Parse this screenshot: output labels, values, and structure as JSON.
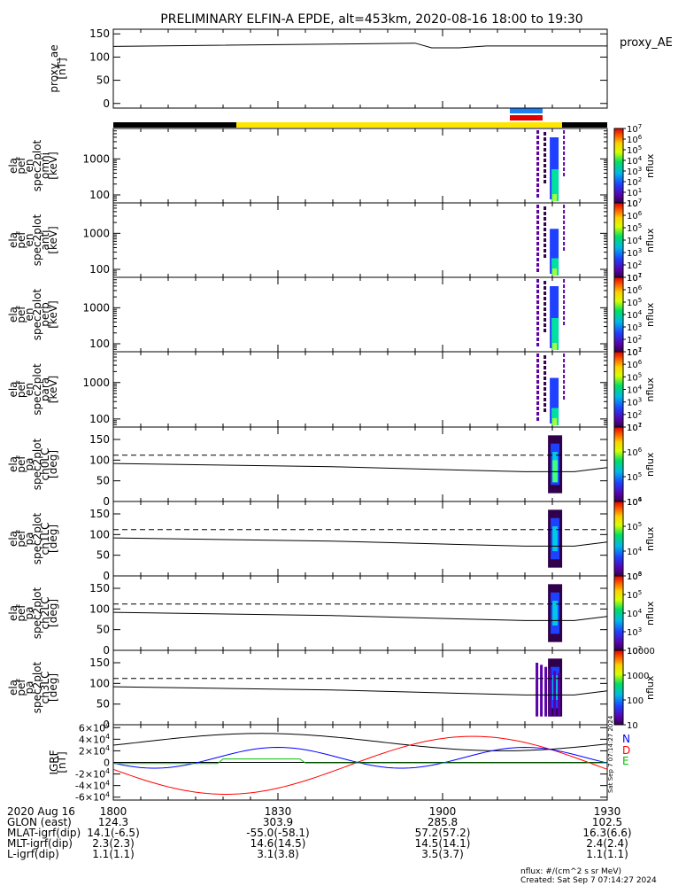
{
  "title": "PRELIMINARY ELFIN-A EPDE, alt=453km, 2020-08-16 18:00 to 19:30",
  "side_label": "proxy_AE",
  "colorbar_unit": "nflux",
  "legend": {
    "n": "N",
    "d": "D",
    "e": "E"
  },
  "footer": {
    "note": "nflux: #/(cm^2 s sr MeV)",
    "created": "Created: Sat Sep  7 07:14:27 2024",
    "stamp": "Sat Sep  7 07:14:27 2024"
  },
  "ephemeris": {
    "rows": [
      {
        "label": "2020 Aug 16",
        "values": [
          "1800",
          "1830",
          "1900",
          "1930"
        ]
      },
      {
        "label": "GLON (east)",
        "values": [
          "124.3",
          "303.9",
          "285.8",
          "102.5"
        ]
      },
      {
        "label": "MLAT-igrf(dip)",
        "values": [
          "14.1(-6.5)",
          "-55.0(-58.1)",
          "57.2(57.2)",
          "16.3(6.6)"
        ]
      },
      {
        "label": "MLT-igrf(dip)",
        "values": [
          "2.3(2.3)",
          "14.6(14.5)",
          "14.5(14.1)",
          "2.4(2.4)"
        ]
      },
      {
        "label": "L-igrf(dip)",
        "values": [
          "1.1(1.1)",
          "3.1(3.8)",
          "3.5(3.7)",
          "1.1(1.1)"
        ]
      }
    ]
  },
  "chart_data": [
    {
      "type": "line",
      "id": "proxy_ae",
      "ylabel": [
        "proxy_ae",
        "[nT]"
      ],
      "ylim": [
        -10,
        160
      ],
      "yticks": [
        0,
        50,
        100,
        150
      ],
      "x_minutes": [
        0,
        58,
        63,
        68,
        90
      ],
      "series": [
        {
          "x": [
            0,
            40,
            55,
            58,
            63,
            68,
            90
          ],
          "y": [
            123,
            128,
            130,
            120,
            120,
            124,
            124
          ]
        }
      ]
    },
    {
      "type": "heatmap",
      "id": "omni",
      "ylabel": [
        "ela",
        "pef",
        "en",
        "spec2plot",
        "omni",
        "[keV]"
      ],
      "ylog": true,
      "ylim": [
        60,
        7000
      ],
      "yticks": [
        100,
        1000
      ],
      "cbar_ticks": [
        "10",
        "10^1",
        "10^2",
        "10^3",
        "10^4",
        "10^5",
        "10^6",
        "10^7"
      ]
    },
    {
      "type": "heatmap",
      "id": "anti",
      "ylabel": [
        "ela",
        "pef",
        "en",
        "spec2plot",
        "anti",
        "[keV]"
      ],
      "ylog": true,
      "ylim": [
        60,
        7000
      ],
      "yticks": [
        100,
        1000
      ],
      "cbar_ticks": [
        "10^1",
        "10^2",
        "10^3",
        "10^4",
        "10^5",
        "10^6",
        "10^7"
      ]
    },
    {
      "type": "heatmap",
      "id": "perp",
      "ylabel": [
        "ela",
        "pef",
        "en",
        "spec2plot",
        "perp",
        "[keV]"
      ],
      "ylog": true,
      "ylim": [
        60,
        7000
      ],
      "yticks": [
        100,
        1000
      ],
      "cbar_ticks": [
        "10^1",
        "10^2",
        "10^3",
        "10^4",
        "10^5",
        "10^6",
        "10^7"
      ]
    },
    {
      "type": "heatmap",
      "id": "para",
      "ylabel": [
        "ela",
        "pef",
        "en",
        "spec2plot",
        "para",
        "[keV]"
      ],
      "ylog": true,
      "ylim": [
        60,
        7000
      ],
      "yticks": [
        100,
        1000
      ],
      "cbar_ticks": [
        "10^1",
        "10^2",
        "10^3",
        "10^4",
        "10^5",
        "10^6",
        "10^7"
      ]
    },
    {
      "type": "heatmap",
      "id": "ch0LC",
      "ylabel": [
        "ela",
        "pef",
        "pa",
        "spec2plot",
        "ch0LC",
        "[deg]"
      ],
      "ylim": [
        0,
        180
      ],
      "yticks": [
        0,
        50,
        100,
        150
      ],
      "cbar_ticks": [
        "10^4",
        "10^5",
        "10^6",
        "10^7"
      ]
    },
    {
      "type": "heatmap",
      "id": "ch1LC",
      "ylabel": [
        "ela",
        "pef",
        "pa",
        "spec2plot",
        "ch1LC",
        "[deg]"
      ],
      "ylim": [
        0,
        180
      ],
      "yticks": [
        0,
        50,
        100,
        150
      ],
      "cbar_ticks": [
        "10^3",
        "10^4",
        "10^5",
        "10^6"
      ]
    },
    {
      "type": "heatmap",
      "id": "ch2LC",
      "ylabel": [
        "ela",
        "pef",
        "pa",
        "spec2plot",
        "ch2LC",
        "[deg]"
      ],
      "ylim": [
        0,
        180
      ],
      "yticks": [
        0,
        50,
        100,
        150
      ],
      "cbar_ticks": [
        "10^2",
        "10^3",
        "10^4",
        "10^5",
        "10^6"
      ]
    },
    {
      "type": "heatmap",
      "id": "ch3LC",
      "ylabel": [
        "ela",
        "pef",
        "pa",
        "spec2plot",
        "ch3LC",
        "[deg]"
      ],
      "ylim": [
        0,
        180
      ],
      "yticks": [
        0,
        50,
        100,
        150
      ],
      "cbar_ticks": [
        "10",
        "100",
        "1000",
        "10000"
      ]
    },
    {
      "type": "line",
      "id": "igrf",
      "ylabel": [
        "IGRF",
        "[nT]"
      ],
      "ylim": [
        -65000,
        65000
      ],
      "yticks": [
        -60000,
        -40000,
        -20000,
        0,
        20000,
        40000,
        60000
      ],
      "ytick_labels": [
        "-6×10^4",
        "-4×10^4",
        "-2×10^4",
        "0",
        "2×10^4",
        "4×10^4",
        "6×10^4"
      ],
      "series": [
        {
          "name": "N",
          "color": "#0000ff"
        },
        {
          "name": "D",
          "color": "#ff0000"
        },
        {
          "name": "E",
          "color": "#00c000"
        },
        {
          "color": "#000000"
        }
      ]
    }
  ],
  "colors": {
    "night": "#000000",
    "day": "#ffe600",
    "bar_blue": "#1e7ff0",
    "bar_red": "#e00000"
  }
}
